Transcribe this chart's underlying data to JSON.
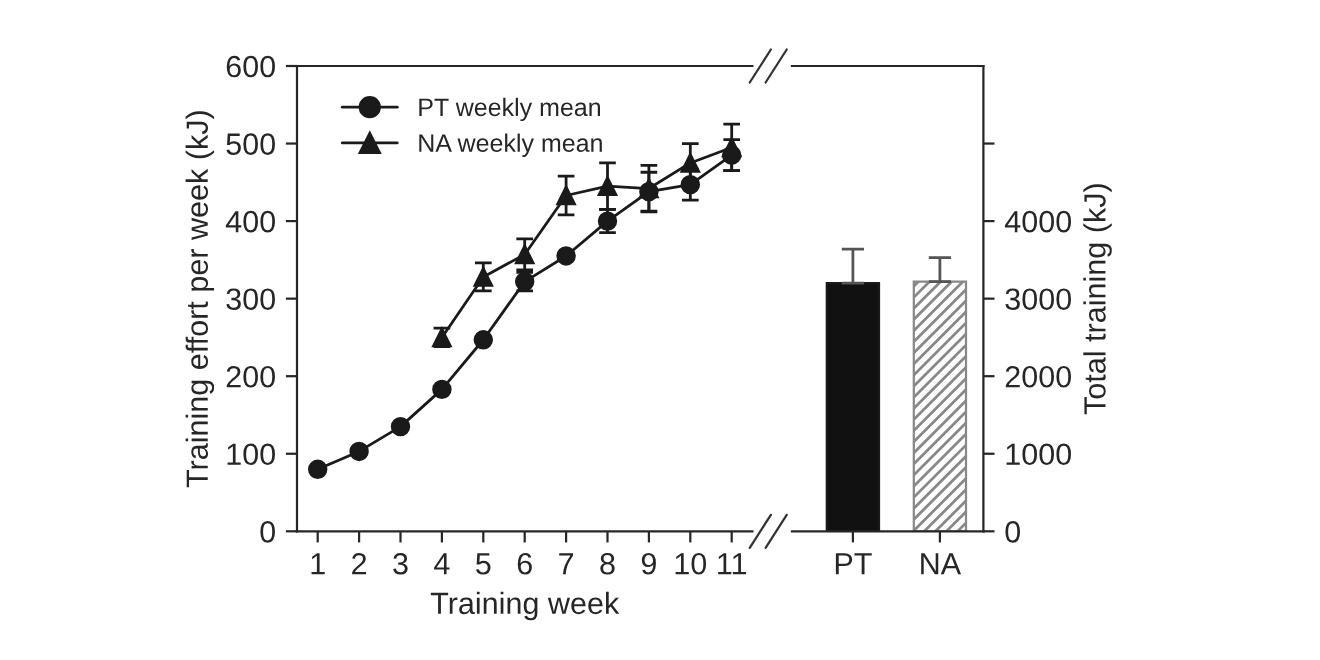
{
  "chart_data": [
    {
      "type": "line",
      "xlabel": "Training week",
      "ylabel": "Training effort per week (kJ)",
      "x": [
        1,
        2,
        3,
        4,
        5,
        6,
        7,
        8,
        9,
        10,
        11
      ],
      "xlim": [
        0.5,
        11.5
      ],
      "xticks": [
        1,
        2,
        3,
        4,
        5,
        6,
        7,
        8,
        9,
        10,
        11
      ],
      "ylim": [
        0,
        600
      ],
      "yticks": [
        0,
        100,
        200,
        300,
        400,
        500,
        600
      ],
      "grid": false,
      "legend": "top left",
      "series": [
        {
          "name": "PT weekly mean",
          "color": "#1a1a1a",
          "marker": "circle",
          "values": [
            80,
            103,
            135,
            183,
            247,
            322,
            355,
            400,
            438,
            447,
            485
          ],
          "errors": [
            null,
            null,
            null,
            null,
            null,
            12,
            null,
            15,
            25,
            20,
            20
          ]
        },
        {
          "name": "NA weekly mean",
          "color": "#1a1a1a",
          "marker": "triangle",
          "values": [
            null,
            null,
            null,
            250,
            328,
            357,
            433,
            445,
            442,
            475,
            495
          ],
          "errors": [
            null,
            null,
            null,
            12,
            18,
            20,
            25,
            30,
            30,
            25,
            30
          ]
        }
      ]
    },
    {
      "type": "bar",
      "ylabel": "Total training (kJ)",
      "categories": [
        "PT",
        "NA"
      ],
      "values": [
        3200,
        3220
      ],
      "errors": [
        440,
        310
      ],
      "colors": [
        "#111111",
        "#888888"
      ],
      "ylim": [
        0,
        6000
      ],
      "yticks": [
        0,
        1000,
        2000,
        3000,
        4000,
        {
          "value": 5000,
          "label": null
        }
      ],
      "grid": false
    }
  ]
}
